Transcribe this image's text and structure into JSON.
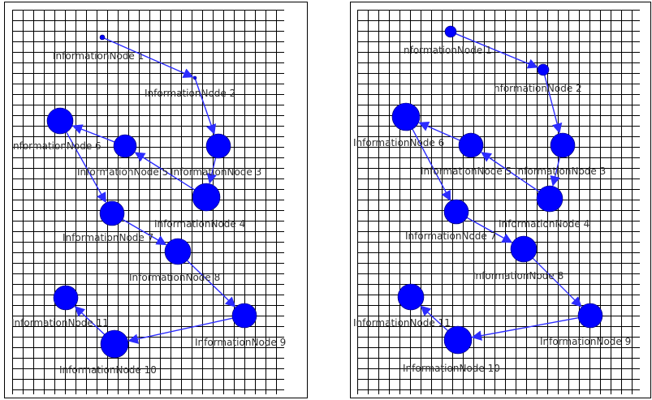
{
  "colors": {
    "node": "#0000ff",
    "edge": "#2b2bff",
    "grid": "#000000",
    "border": "#000000",
    "label": "#303030"
  },
  "panels": [
    {
      "name": "left",
      "nodes": [
        {
          "id": 1,
          "label": "InformationNode 1"
        },
        {
          "id": 2,
          "label": "InformationNode 2"
        },
        {
          "id": 3,
          "label": "InformationNode 3"
        },
        {
          "id": 4,
          "label": "InformationNode 4"
        },
        {
          "id": 5,
          "label": "InformationNode 5"
        },
        {
          "id": 6,
          "label": "nformationNode 6"
        },
        {
          "id": 7,
          "label": "InformationNode 7"
        },
        {
          "id": 8,
          "label": "InformationNode 8"
        },
        {
          "id": 9,
          "label": "InformationNode 9"
        },
        {
          "id": 10,
          "label": "InformationNode 10"
        },
        {
          "id": 11,
          "label": "InformationNode 11"
        }
      ],
      "edges": [
        [
          1,
          2
        ],
        [
          2,
          3
        ],
        [
          3,
          4
        ],
        [
          4,
          5
        ],
        [
          5,
          6
        ],
        [
          6,
          7
        ],
        [
          7,
          8
        ],
        [
          8,
          9
        ],
        [
          9,
          10
        ],
        [
          10,
          11
        ]
      ]
    },
    {
      "name": "right",
      "nodes": [
        {
          "id": 1,
          "label": "nformationNode 1"
        },
        {
          "id": 2,
          "label": "nformationNode 2"
        },
        {
          "id": 3,
          "label": "InformationNode 3"
        },
        {
          "id": 4,
          "label": "InformationNode 4"
        },
        {
          "id": 5,
          "label": "InformationNode 5"
        },
        {
          "id": 6,
          "label": "InformationNode 6"
        },
        {
          "id": 7,
          "label": "InformationNode 7"
        },
        {
          "id": 8,
          "label": "InformationNode 8"
        },
        {
          "id": 9,
          "label": "InformationNode 9"
        },
        {
          "id": 10,
          "label": "InformationNode 10"
        },
        {
          "id": 11,
          "label": "InformationNode 11"
        }
      ],
      "edges": [
        [
          1,
          2
        ],
        [
          2,
          3
        ],
        [
          3,
          4
        ],
        [
          4,
          5
        ],
        [
          5,
          6
        ],
        [
          6,
          7
        ],
        [
          7,
          8
        ],
        [
          8,
          9
        ],
        [
          9,
          10
        ],
        [
          10,
          11
        ]
      ]
    }
  ]
}
